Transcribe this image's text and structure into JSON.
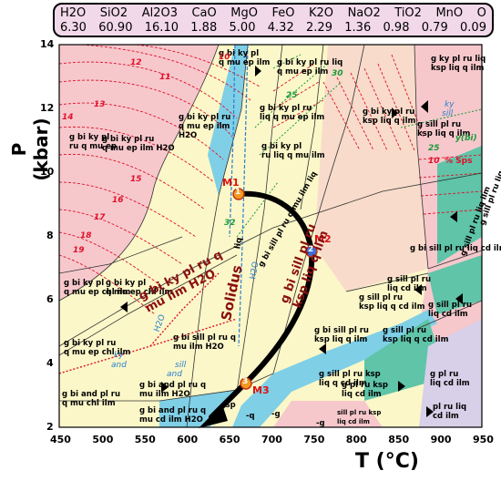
{
  "composition": [
    {
      "name": "H2O",
      "value": "6.30"
    },
    {
      "name": "SiO2",
      "value": "60.90"
    },
    {
      "name": "Al2O3",
      "value": "16.10"
    },
    {
      "name": "CaO",
      "value": "1.88"
    },
    {
      "name": "MgO",
      "value": "5.00"
    },
    {
      "name": "FeO",
      "value": "4.32"
    },
    {
      "name": "K2O",
      "value": "2.29"
    },
    {
      "name": "NaO2",
      "value": "1.36"
    },
    {
      "name": "TiO2",
      "value": "0.98"
    },
    {
      "name": "MnO",
      "value": "0.79"
    },
    {
      "name": "O",
      "value": "0.09"
    }
  ],
  "axes": {
    "xlabel": "T (°C)",
    "ylabel": "P (kbar)",
    "xticks": [
      "450",
      "500",
      "550",
      "600",
      "650",
      "700",
      "750",
      "800",
      "850",
      "900",
      "950"
    ],
    "yticks": [
      "2",
      "4",
      "6",
      "8",
      "10",
      "12",
      "14"
    ]
  },
  "points": [
    {
      "label": "M1",
      "num": "1"
    },
    {
      "label": "M2",
      "num": "2"
    },
    {
      "label": "M3",
      "num": "3"
    }
  ],
  "fields": {
    "f1": "g bi ky pl\nq mu ep ilm",
    "f2": "g bi ky pl ru liq\nq mu ep ilm",
    "f3": "g ky pl ru liq\nksp liq q ilm",
    "f4": "g bi ky pl\nru q mu ep",
    "f5": "g bi ky pl ru\nq mu ep ilm\nH2O",
    "f6": "g bi ky pl ru\nq mu ilm H2O",
    "f7": "g bi ky pl ru\nliq q mu ep ilm",
    "f8": "g bi ky pl ru\nq mu ep ilm H2O",
    "f9": "g bi ky pl\nru liq q mu ilm",
    "f10": "g bi ky pl ru\nksp liq q ilm",
    "f11": "g sill pl ru\nksp liq q ilm",
    "f12": "g sill pl ru liq q ilm",
    "f13": "g sill pl ru liq ilm",
    "f14": "g bi ky pl\nq mu ep chl ilm",
    "f15": "g bi ky pl\nq mu ep chl ilm",
    "f16": "g bi ky pl ru q\nmu ilm H2O",
    "f17": "g bi sill pl ru\nksp liq q ilm",
    "f18": "g sill pl ru\nliq cd ilm",
    "f19": "g bi ky pl ru\nq mu ep chl ilm",
    "f20": "g bi sill pl ru q mu ilm liq",
    "f21": "g bi sill pl ru liq cd ilm",
    "f22": "g sill pl ru\nksp liq q cd ilm",
    "f23": "g bi sill pl ru q\nmu ilm H2O",
    "f24": "g sill pl ru\nliq cd ilm",
    "f25": "g bi and pl ru\nq mu chl ilm",
    "f26": "g bi and pl ru q\nmu ilm H2O",
    "f27": "g sill pl ru ksp\nliq q cd ilm",
    "f28": "g sill pl ru\nksp liq q cd ilm",
    "f29": "g pl ru ksp\nliq cd ilm",
    "f30": "g pl ru\nliq cd ilm",
    "f31": "pl ru liq\ncd ilm",
    "f32": "g bi and pl ru q\nmu cd ilm H2O",
    "f33": "sill pl ru ksp\nliq cd ilm",
    "f34": "sill pl ru\nliq cd ilm",
    "f35": "Solidus",
    "f36": "ky",
    "f37": "and",
    "f38": "sill",
    "f39": "and",
    "f40": "H2O",
    "f41": "H2O",
    "f42": "liq",
    "f43": "-g",
    "f44": "-sp",
    "f45": "-q",
    "f46": "-g",
    "f47": "ky",
    "f48": "sill"
  },
  "isopleths": {
    "gsps": [
      "12",
      "11",
      "10",
      "13",
      "14",
      "15",
      "16",
      "17",
      "18",
      "19"
    ],
    "ybi": [
      "25",
      "30",
      "32",
      "25"
    ],
    "legend_ybi": "y(bi)",
    "legend_sps": "% Sps",
    "legend_ybi_val": "25",
    "legend_sps_val": "10"
  },
  "colors": {
    "pink": "#f6c8cc",
    "yellow": "#fbf7c8",
    "blue": "#7fcfe6",
    "teal": "#5fc4a8",
    "lavender": "#d8cfe8",
    "path": "#000000",
    "isopleth_red": "#e0102a",
    "isopleth_green": "#1a9a3a"
  }
}
